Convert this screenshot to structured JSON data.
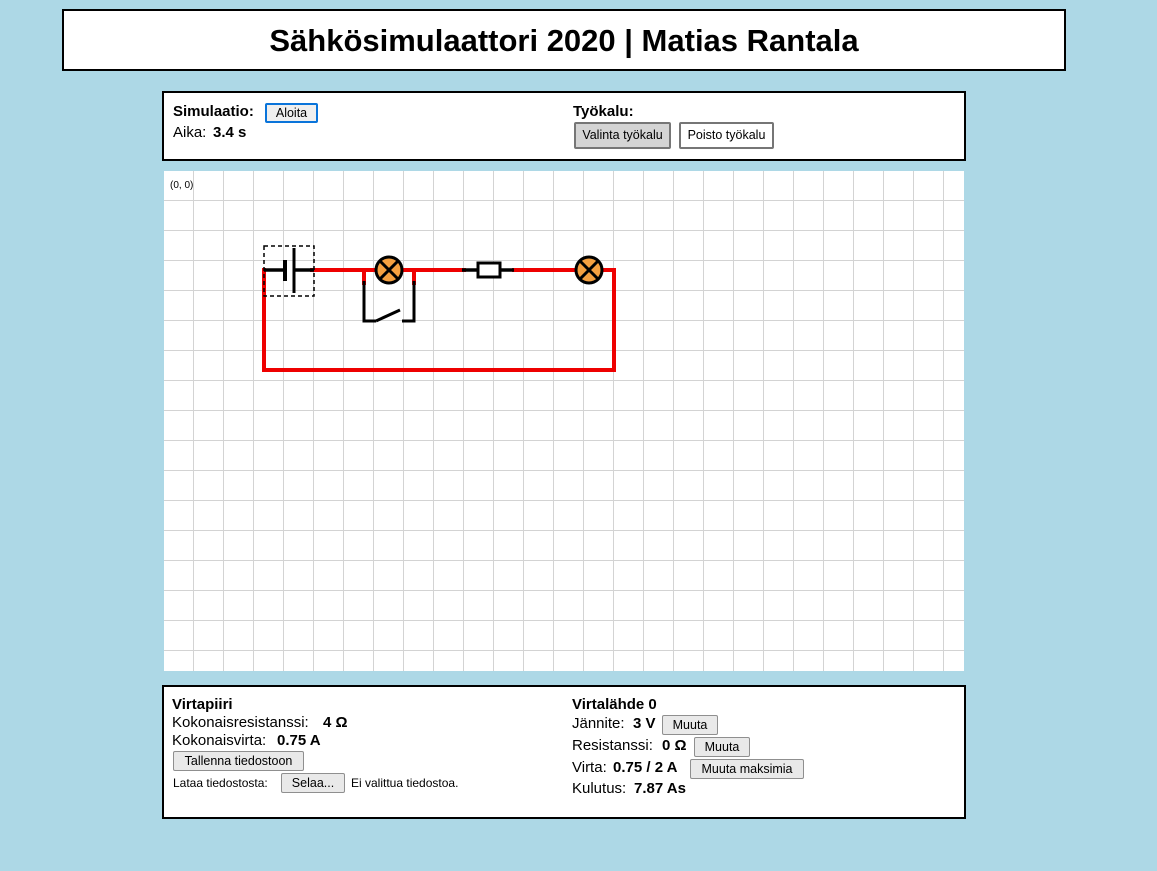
{
  "header": {
    "title": "Sähkösimulaattori 2020 | Matias Rantala"
  },
  "simulation": {
    "label": "Simulaatio:",
    "start_button": "Aloita",
    "time_label": "Aika:",
    "time_value": "3.4 s"
  },
  "tools": {
    "label": "Työkalu:",
    "select_tool": "Valinta työkalu",
    "delete_tool": "Poisto työkalu",
    "active": "select_tool"
  },
  "canvas": {
    "origin_label": "(0, 0)",
    "colors": {
      "wire_active": "#ee0000",
      "wire_idle": "#000000",
      "lamp": "#f5a040",
      "grid": "#d3d3d3"
    }
  },
  "circuit": {
    "heading": "Virtapiiri",
    "resistance_label": "Kokonaisresistanssi:",
    "resistance_value": "4 Ω",
    "current_label": "Kokonaisvirta:",
    "current_value": "0.75 A",
    "save_button": "Tallenna tiedostoon",
    "load_label": "Lataa tiedostosta:",
    "browse_button": "Selaa...",
    "no_file": "Ei valittua tiedostoa."
  },
  "source": {
    "heading": "Virtalähde 0",
    "voltage_label": "Jännite:",
    "voltage_value": "3 V",
    "voltage_button": "Muuta",
    "resistance_label": "Resistanssi:",
    "resistance_value": "0 Ω",
    "resistance_button": "Muuta",
    "current_label": "Virta:",
    "current_value": "0.75 / 2 A",
    "current_button": "Muuta maksimia",
    "consumption_label": "Kulutus:",
    "consumption_value": "7.87 As"
  }
}
